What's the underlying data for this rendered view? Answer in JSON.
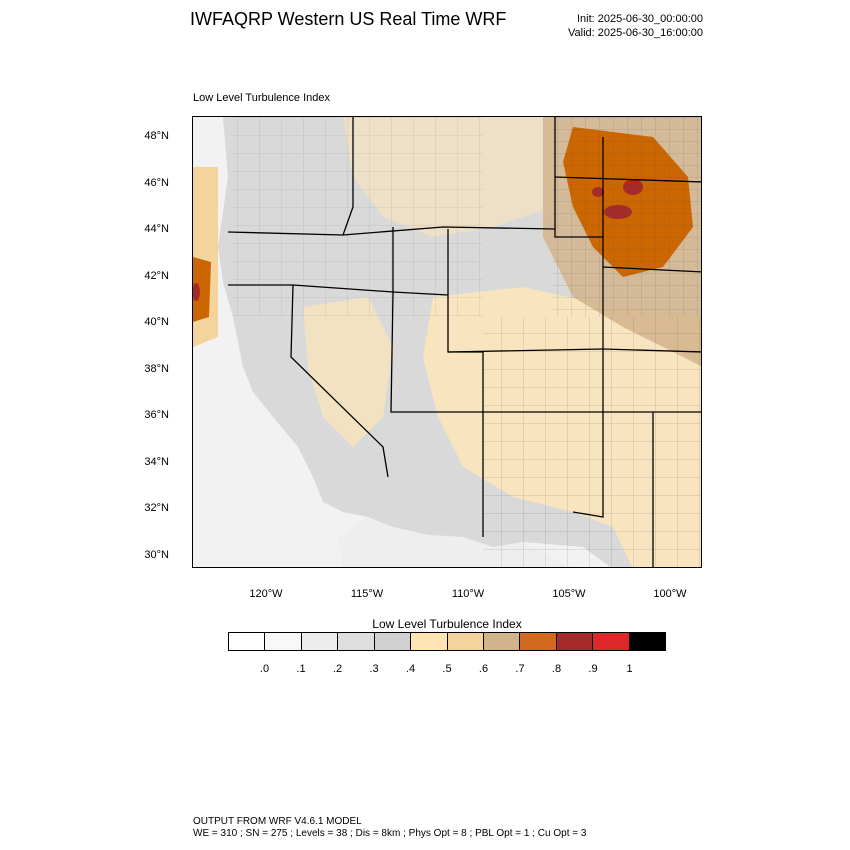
{
  "header": {
    "title": "IWFAQRP Western US Real Time WRF",
    "init": "Init: 2025-06-30_00:00:00",
    "valid": "Valid: 2025-06-30_16:00:00"
  },
  "map": {
    "title": "Low Level Turbulence Index",
    "lat_labels": [
      "48°N",
      "46°N",
      "44°N",
      "42°N",
      "40°N",
      "38°N",
      "36°N",
      "34°N",
      "32°N",
      "30°N"
    ],
    "lon_labels": [
      "120°W",
      "115°W",
      "110°W",
      "105°W",
      "100°W"
    ],
    "colors": {
      "ocean": "#f2f2f2",
      "land_low": "#d9d9d9",
      "band_mid": "#fde5b8",
      "band_high": "#cc6600",
      "band_peak": "#a52a2a",
      "state_border": "#000000",
      "county_border": "#555555"
    }
  },
  "colorbar": {
    "title": "Low Level Turbulence Index",
    "labels": [
      ".0",
      ".1",
      ".2",
      ".3",
      ".4",
      ".5",
      ".6",
      ".7",
      ".8",
      ".9",
      "1"
    ],
    "colors": [
      "#ffffff",
      "#f8f8f8",
      "#ededed",
      "#dedede",
      "#d0d0d0",
      "#ffe5b4",
      "#f5d39d",
      "#d2b48c",
      "#d2691e",
      "#a52a2a",
      "#dc2828",
      "#000000"
    ]
  },
  "footer": {
    "line1": "OUTPUT FROM WRF V4.6.1 MODEL",
    "line2": "WE = 310 ; SN = 275 ; Levels = 38 ; Dis = 8km ; Phys Opt = 8 ; PBL Opt = 1 ; Cu Opt = 3"
  }
}
